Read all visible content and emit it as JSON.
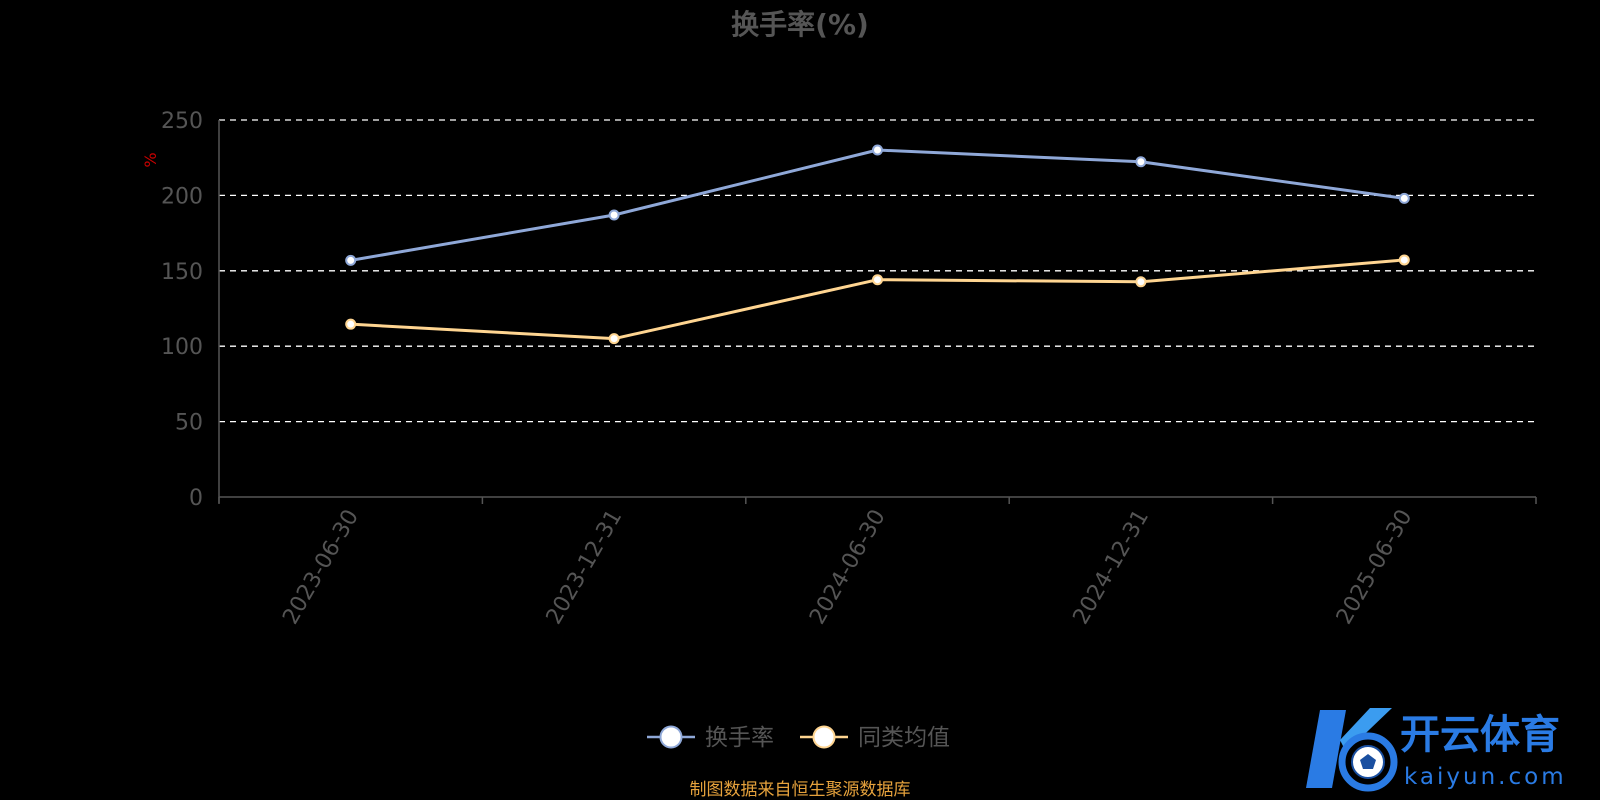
{
  "chart_data": {
    "type": "line",
    "title": "换手率(%)",
    "ylabel": "%",
    "categories": [
      "2023-06-30",
      "2023-12-31",
      "2024-06-30",
      "2024-12-31",
      "2025-06-30"
    ],
    "ylim": [
      0,
      250
    ],
    "yticks": [
      0,
      50,
      100,
      150,
      200,
      250
    ],
    "grid": true,
    "legend_position": "bottom-center",
    "series": [
      {
        "name": "换手率",
        "color": "#8fa8d8",
        "values": [
          156.9,
          187.0,
          230.1,
          222.3,
          198.0
        ]
      },
      {
        "name": "同类均值",
        "color": "#ffd591",
        "values": [
          114.6,
          105.0,
          144.1,
          142.7,
          157.2
        ]
      }
    ]
  },
  "footer": {
    "source": "制图数据来自恒生聚源数据库"
  },
  "watermark": {
    "brand": "开云体育",
    "domain": "kaiyun.com"
  },
  "colors": {
    "background": "#000000",
    "axis_text": "#555555",
    "ylabel": "#cc0000",
    "source_text": "#e6a23c",
    "watermark_blue": "#2a7be4"
  }
}
